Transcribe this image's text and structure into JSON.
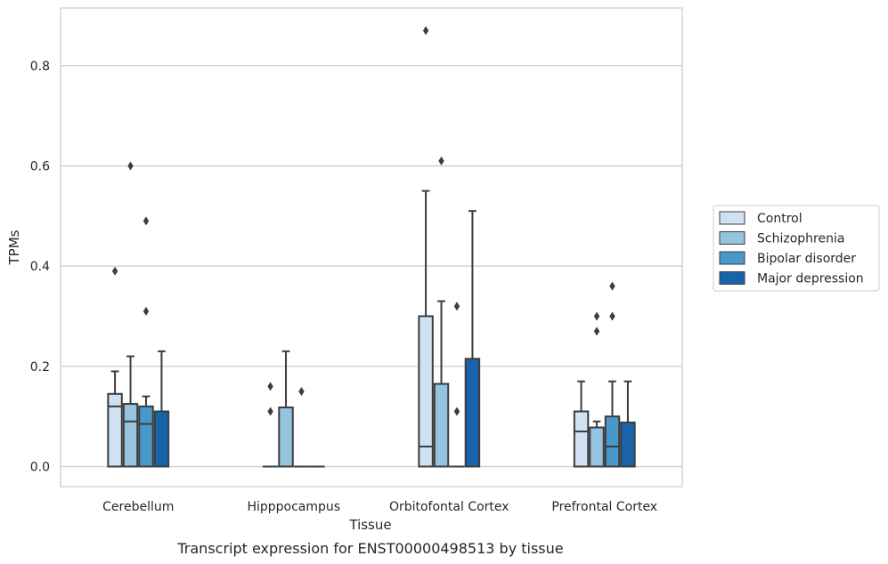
{
  "chart_data": {
    "type": "boxplot",
    "title": "",
    "xlabel": "Tissue",
    "ylabel": "TPMs",
    "caption": "Transcript expression for ENST00000498513 by tissue",
    "ylim": [
      -0.04,
      0.915
    ],
    "yticks": [
      "0.0",
      "0.2",
      "0.4",
      "0.6",
      "0.8"
    ],
    "grid": "horizontal",
    "legend_position": "right",
    "categories": [
      "Cerebellum",
      "Hipppocampus",
      "Orbitofontal Cortex",
      "Prefrontal Cortex"
    ],
    "series": [
      {
        "name": "Control",
        "color": "#d0e1f2",
        "boxes": [
          {
            "q1": 0.0,
            "median": 0.12,
            "q3": 0.145,
            "whislo": 0.0,
            "whishi": 0.19,
            "fliers": [
              0.39
            ]
          },
          {
            "q1": 0.0,
            "median": 0.0,
            "q3": 0.0,
            "whislo": 0.0,
            "whishi": 0.0,
            "fliers": [
              0.11,
              0.16
            ]
          },
          {
            "q1": 0.0,
            "median": 0.04,
            "q3": 0.3,
            "whislo": 0.0,
            "whishi": 0.55,
            "fliers": [
              0.87
            ]
          },
          {
            "q1": 0.0,
            "median": 0.07,
            "q3": 0.11,
            "whislo": 0.0,
            "whishi": 0.17,
            "fliers": []
          }
        ]
      },
      {
        "name": "Schizophrenia",
        "color": "#94c4df",
        "boxes": [
          {
            "q1": 0.0,
            "median": 0.09,
            "q3": 0.125,
            "whislo": 0.0,
            "whishi": 0.22,
            "fliers": [
              0.6
            ]
          },
          {
            "q1": 0.0,
            "median": 0.0,
            "q3": 0.118,
            "whislo": 0.0,
            "whishi": 0.23,
            "fliers": []
          },
          {
            "q1": 0.0,
            "median": 0.0,
            "q3": 0.165,
            "whislo": 0.0,
            "whishi": 0.33,
            "fliers": [
              0.61
            ]
          },
          {
            "q1": 0.0,
            "median": 0.078,
            "q3": 0.078,
            "whislo": 0.0,
            "whishi": 0.09,
            "fliers": [
              0.27,
              0.3
            ]
          }
        ]
      },
      {
        "name": "Bipolar disorder",
        "color": "#4a98c9",
        "boxes": [
          {
            "q1": 0.0,
            "median": 0.085,
            "q3": 0.12,
            "whislo": 0.0,
            "whishi": 0.14,
            "fliers": [
              0.31,
              0.49
            ]
          },
          {
            "q1": 0.0,
            "median": 0.0,
            "q3": 0.0,
            "whislo": 0.0,
            "whishi": 0.0,
            "fliers": [
              0.15
            ]
          },
          {
            "q1": 0.0,
            "median": 0.0,
            "q3": 0.0,
            "whislo": 0.0,
            "whishi": 0.0,
            "fliers": [
              0.11,
              0.32
            ]
          },
          {
            "q1": 0.0,
            "median": 0.04,
            "q3": 0.1,
            "whislo": 0.0,
            "whishi": 0.17,
            "fliers": [
              0.3,
              0.36
            ]
          }
        ]
      },
      {
        "name": "Major depression",
        "color": "#1764ab",
        "boxes": [
          {
            "q1": 0.0,
            "median": 0.0,
            "q3": 0.11,
            "whislo": 0.0,
            "whishi": 0.23,
            "fliers": []
          },
          {
            "q1": 0.0,
            "median": 0.0,
            "q3": 0.0,
            "whislo": 0.0,
            "whishi": 0.0,
            "fliers": []
          },
          {
            "q1": 0.0,
            "median": 0.0,
            "q3": 0.215,
            "whislo": 0.0,
            "whishi": 0.51,
            "fliers": []
          },
          {
            "q1": 0.0,
            "median": 0.0,
            "q3": 0.088,
            "whislo": 0.0,
            "whishi": 0.17,
            "fliers": []
          }
        ]
      }
    ]
  }
}
